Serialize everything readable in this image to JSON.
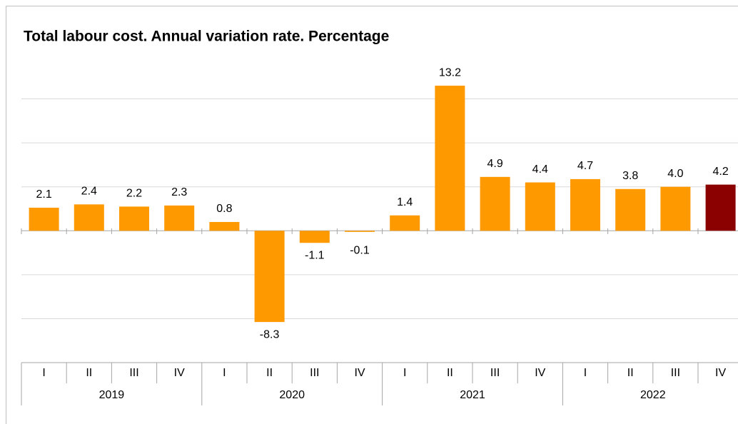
{
  "chart_data": {
    "type": "bar",
    "title": "Total labour cost. Annual  variation rate. Percentage",
    "categories": [
      "I",
      "II",
      "III",
      "IV",
      "I",
      "II",
      "III",
      "IV",
      "I",
      "II",
      "III",
      "IV",
      "I",
      "II",
      "III",
      "IV"
    ],
    "years": [
      "2019",
      "2020",
      "2021",
      "2022"
    ],
    "values": [
      2.1,
      2.4,
      2.2,
      2.3,
      0.8,
      -8.3,
      -1.1,
      -0.1,
      1.4,
      13.2,
      4.9,
      4.4,
      4.7,
      3.8,
      4.0,
      4.2
    ],
    "value_labels": [
      "2.1",
      "2.4",
      "2.2",
      "2.3",
      "0.8",
      "-8.3",
      "-1.1",
      "-0.1",
      "1.4",
      "13.2",
      "4.9",
      "4.4",
      "4.7",
      "3.8",
      "4.0",
      "4.2"
    ],
    "colors": [
      "#ff9900",
      "#ff9900",
      "#ff9900",
      "#ff9900",
      "#ff9900",
      "#ff9900",
      "#ff9900",
      "#ff9900",
      "#ff9900",
      "#ff9900",
      "#ff9900",
      "#ff9900",
      "#ff9900",
      "#ff9900",
      "#ff9900",
      "#8b0000"
    ],
    "ylim": [
      -11.8,
      15.8
    ],
    "yticks": [
      -8,
      -4,
      0,
      4,
      8,
      12
    ],
    "grid": true
  }
}
